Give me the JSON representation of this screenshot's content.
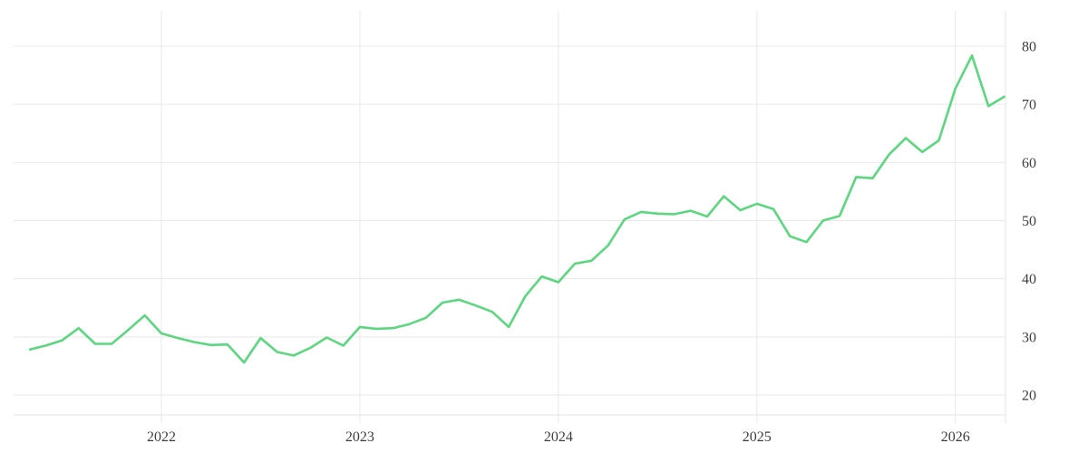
{
  "chart_data": {
    "type": "line",
    "title": "",
    "xlabel": "",
    "ylabel": "",
    "legend": "none",
    "grid": true,
    "y_axis_side": "right",
    "ylim": [
      20,
      80
    ],
    "y_ticks": [
      20,
      30,
      40,
      50,
      60,
      70,
      80
    ],
    "x_tick_labels": [
      "2022",
      "2023",
      "2024",
      "2025",
      "2026"
    ],
    "x": [
      "2021-05",
      "2021-06",
      "2021-07",
      "2021-08",
      "2021-09",
      "2021-10",
      "2021-11",
      "2021-12",
      "2022-01",
      "2022-02",
      "2022-03",
      "2022-04",
      "2022-05",
      "2022-06",
      "2022-07",
      "2022-08",
      "2022-09",
      "2022-10",
      "2022-11",
      "2022-12",
      "2023-01",
      "2023-02",
      "2023-03",
      "2023-04",
      "2023-05",
      "2023-06",
      "2023-07",
      "2023-08",
      "2023-09",
      "2023-10",
      "2023-11",
      "2023-12",
      "2024-01",
      "2024-02",
      "2024-03",
      "2024-04",
      "2024-05",
      "2024-06",
      "2024-07",
      "2024-08",
      "2024-09",
      "2024-10",
      "2024-11",
      "2024-12",
      "2025-01",
      "2025-02",
      "2025-03",
      "2025-04",
      "2025-05",
      "2025-06",
      "2025-07",
      "2025-08",
      "2025-09",
      "2025-10",
      "2025-11",
      "2025-12",
      "2026-01",
      "2026-02",
      "2026-03",
      "2026-04"
    ],
    "values": [
      27.8,
      28.5,
      29.4,
      31.5,
      28.8,
      28.8,
      31.2,
      33.7,
      30.6,
      29.8,
      29.1,
      28.6,
      28.7,
      25.6,
      29.8,
      27.4,
      26.8,
      28.1,
      29.9,
      28.5,
      31.7,
      31.4,
      31.5,
      32.2,
      33.3,
      35.9,
      36.4,
      35.4,
      34.3,
      31.7,
      37.0,
      40.4,
      39.4,
      42.6,
      43.1,
      45.7,
      50.2,
      51.5,
      51.2,
      51.1,
      51.7,
      50.7,
      54.2,
      51.8,
      52.9,
      52.0,
      47.3,
      46.3,
      50.0,
      50.8,
      57.5,
      57.3,
      61.4,
      64.2,
      61.8,
      63.8,
      72.7,
      78.4,
      69.7,
      71.4
    ],
    "colors": {
      "line": "#5cd67f",
      "grid": "#e9e9e9",
      "axis": "#e3e3e3",
      "label": "#3d3d3d",
      "background": "#ffffff"
    }
  }
}
